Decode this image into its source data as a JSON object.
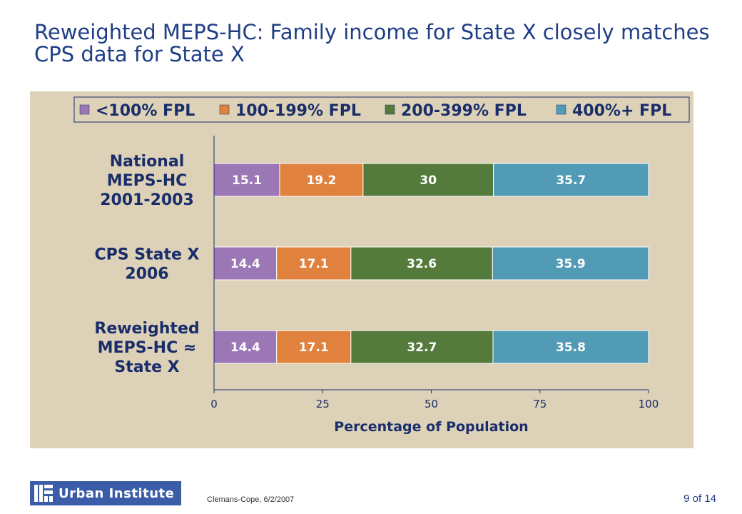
{
  "slide": {
    "title": "Reweighted MEPS-HC: Family income for State X closely matches CPS data for State X",
    "footer_credit": "Clemans-Cope, 6/2/2007",
    "page_number": "9 of 14",
    "logo_text": "Urban Institute"
  },
  "colors": {
    "panel_bg": "#ddd2b7",
    "title": "#1f3e86",
    "text_dark": "#1a2d6b",
    "series": [
      "#9b77b5",
      "#e0823d",
      "#547b3c",
      "#519bb6"
    ]
  },
  "chart_data": {
    "type": "bar",
    "orientation": "horizontal",
    "stacked": true,
    "title": "",
    "xlabel": "Percentage of Population",
    "ylabel": "",
    "xlim": [
      0,
      100
    ],
    "xticks": [
      0,
      25,
      50,
      75,
      100
    ],
    "legend_position": "top",
    "grid": false,
    "categories": [
      [
        "National",
        "MEPS-HC",
        "2001-2003"
      ],
      [
        "CPS State X",
        "2006"
      ],
      [
        "Reweighted",
        "MEPS-HC ≈",
        "State X"
      ]
    ],
    "series": [
      {
        "name": "<100% FPL",
        "values": [
          15.1,
          14.4,
          14.4
        ],
        "labels": [
          "15.1",
          "14.4",
          "14.4"
        ]
      },
      {
        "name": "100-199% FPL",
        "values": [
          19.2,
          17.1,
          17.1
        ],
        "labels": [
          "19.2",
          "17.1",
          "17.1"
        ]
      },
      {
        "name": "200-399% FPL",
        "values": [
          30,
          32.6,
          32.7
        ],
        "labels": [
          "30",
          "32.6",
          "32.7"
        ]
      },
      {
        "name": "400%+ FPL",
        "values": [
          35.7,
          35.9,
          35.8
        ],
        "labels": [
          "35.7",
          "35.9",
          "35.8"
        ]
      }
    ]
  }
}
